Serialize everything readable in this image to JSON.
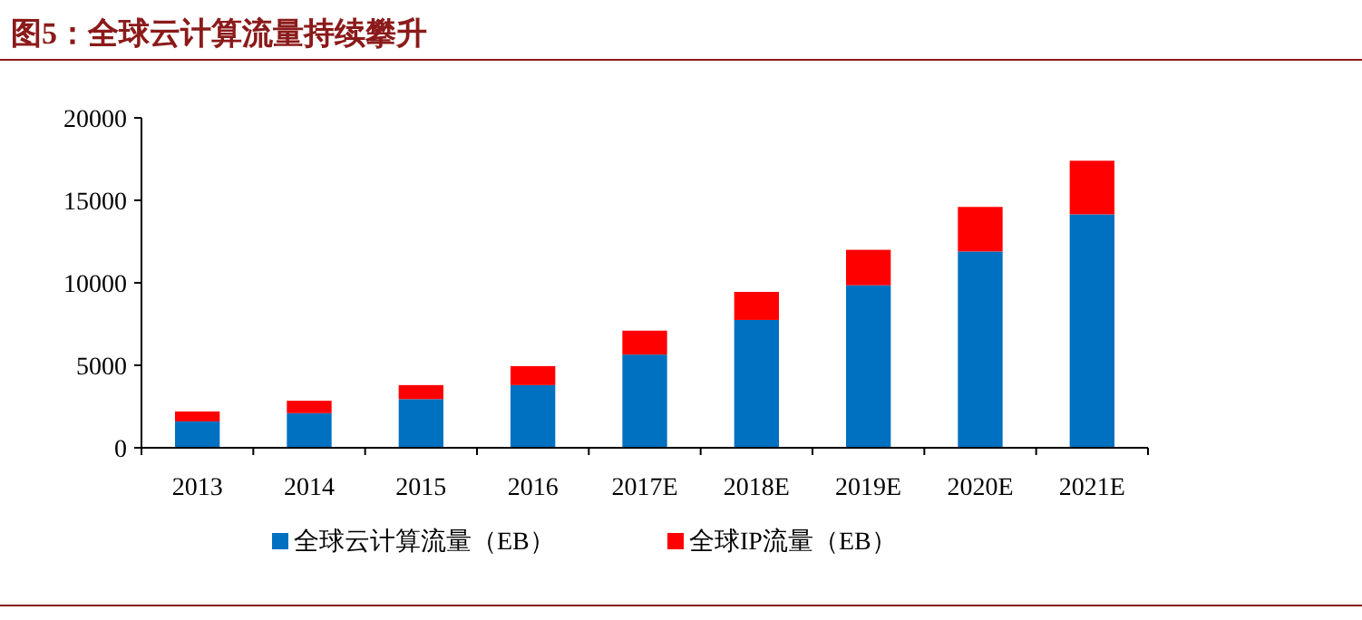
{
  "chart_data": {
    "type": "bar",
    "title": "图5：全球云计算流量持续攀升",
    "categories": [
      "2013",
      "2014",
      "2015",
      "2016",
      "2017E",
      "2018E",
      "2019E",
      "2020E",
      "2021E"
    ],
    "series": [
      {
        "name": "全球云计算流量（EB）",
        "color": "#0070c0",
        "values": [
          1600,
          2100,
          2950,
          3800,
          5650,
          7750,
          9850,
          11900,
          14150
        ]
      },
      {
        "name": "全球IP流量（EB）",
        "color": "#ff0000",
        "values": [
          600,
          750,
          850,
          1150,
          1450,
          1700,
          2150,
          2700,
          3250
        ]
      }
    ],
    "stacked": true,
    "ylim": [
      0,
      20000
    ],
    "yticks": [
      0,
      5000,
      10000,
      15000,
      20000
    ],
    "legend": "bottom",
    "grid": false
  }
}
